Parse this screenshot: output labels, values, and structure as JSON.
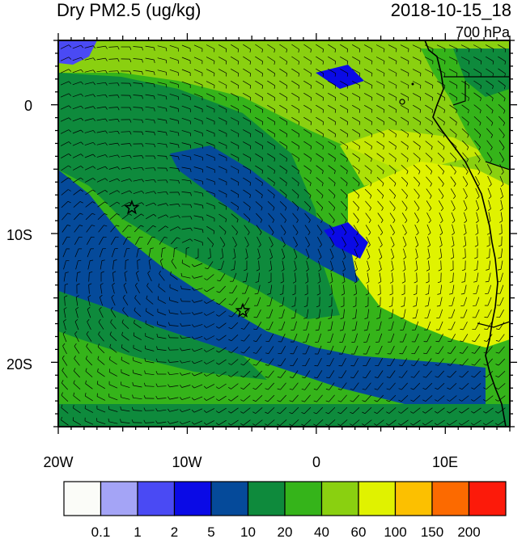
{
  "header": {
    "title": "Dry PM2.5 (ug/kg)",
    "datetime": "2018-10-15_18",
    "level": "700 hPa"
  },
  "map": {
    "region": "Southeast Atlantic / Southwest Africa",
    "lon_range": [
      -20,
      15
    ],
    "lat_range": [
      -25,
      5
    ],
    "x_ticks": [
      "20W",
      "10W",
      "0",
      "10E"
    ],
    "y_ticks": [
      "0",
      "10S",
      "20S"
    ],
    "markers": [
      {
        "name": "star-1",
        "lon": -14.3,
        "lat": -8.0
      },
      {
        "name": "star-2",
        "lon": -5.7,
        "lat": -16.0
      }
    ],
    "overlay": "wind barbs"
  },
  "colorbar": {
    "labels": [
      "0.1",
      "1",
      "2",
      "5",
      "10",
      "20",
      "40",
      "60",
      "100",
      "150",
      "200"
    ],
    "colors": [
      "#fbfcf8",
      "#a4a4f6",
      "#4a4af4",
      "#0a0ae6",
      "#054a9a",
      "#0e8a3c",
      "#35b41a",
      "#8ad010",
      "#e0f200",
      "#fcc000",
      "#fc6a00",
      "#fc1a0a"
    ]
  }
}
